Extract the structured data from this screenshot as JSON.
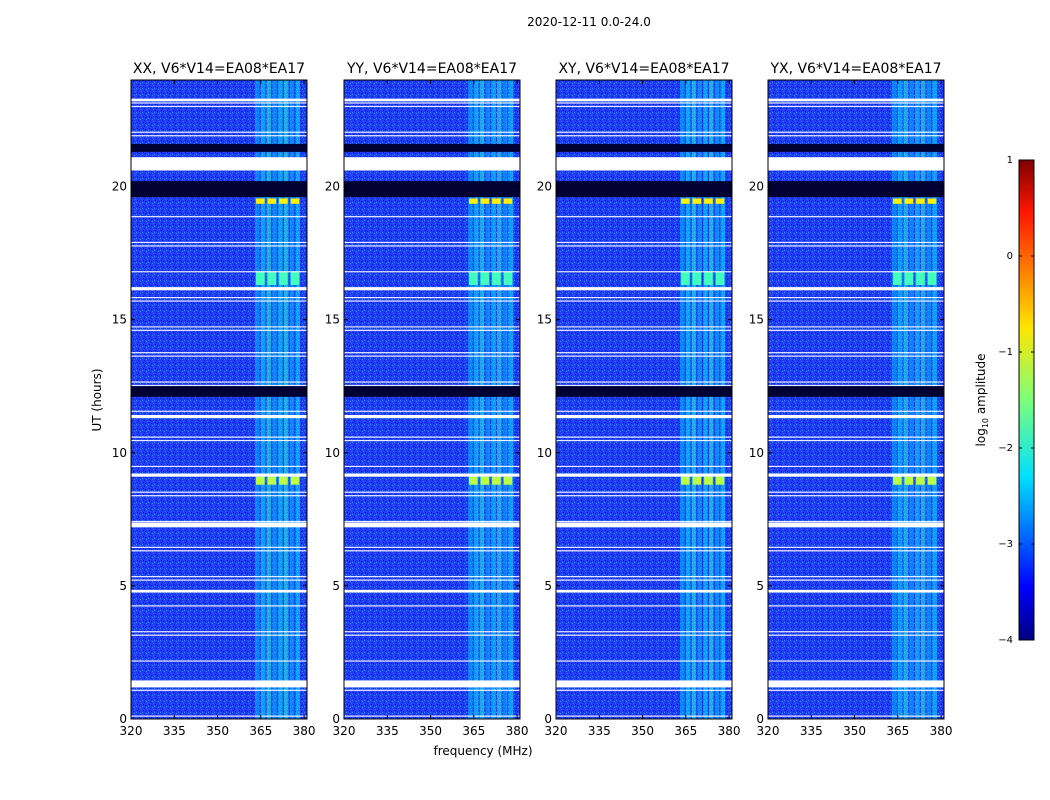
{
  "figure_title": "2020-12-11 0.0-24.0",
  "colors": {
    "background": "#ffffff",
    "base_noise": "#1f3df5",
    "flag_white": "#ffffff",
    "flag_black": "#000033"
  },
  "chart_data": {
    "type": "heatmap",
    "title": "2020-12-11 0.0-24.0",
    "xlabel": "frequency (MHz)",
    "ylabel": "UT (hours)",
    "xlim": [
      320,
      381
    ],
    "ylim": [
      0,
      24
    ],
    "xticks": [
      320,
      335,
      350,
      365,
      380
    ],
    "yticks": [
      0,
      5,
      10,
      15,
      20
    ],
    "panels": [
      {
        "title": "XX, V6*V14=EA08*EA17",
        "show_ylabel": true
      },
      {
        "title": "YY, V6*V14=EA08*EA17",
        "show_ylabel": false
      },
      {
        "title": "XY, V6*V14=EA08*EA17",
        "show_ylabel": false
      },
      {
        "title": "YX, V6*V14=EA08*EA17",
        "show_ylabel": false
      }
    ],
    "colorbar": {
      "label": "log10 amplitude",
      "label_main": "log",
      "label_sub": "10",
      "label_rest": " amplitude",
      "range": [
        -4,
        1
      ],
      "ticks": [
        {
          "value": 1,
          "label": "1"
        },
        {
          "value": 0,
          "label": "0"
        },
        {
          "value": -1,
          "label": "−1"
        },
        {
          "value": -2,
          "label": "−2"
        },
        {
          "value": -3,
          "label": "−3"
        },
        {
          "value": -4,
          "label": "−4"
        }
      ],
      "colormap": "jet"
    },
    "background_level": -3,
    "rfi_band_mhz": [
      363,
      379
    ],
    "rfi_level": -2.2,
    "flagged_black_ut": [
      [
        19.6,
        20.2
      ],
      [
        12.1,
        12.5
      ],
      [
        21.3,
        21.6
      ]
    ],
    "flagged_white_ut": [
      [
        20.6,
        21.1
      ],
      [
        1.2,
        1.45
      ],
      [
        7.2,
        7.38
      ],
      [
        16.1,
        16.22
      ],
      [
        11.3,
        11.42
      ],
      [
        9.1,
        9.22
      ],
      [
        23.2,
        23.3
      ],
      [
        4.75,
        4.85
      ]
    ],
    "bright_bursts": [
      {
        "ut": [
          19.35,
          19.55
        ],
        "level": -0.8
      },
      {
        "ut": [
          16.3,
          16.8
        ],
        "level": -1.8
      },
      {
        "ut": [
          8.8,
          9.1
        ],
        "level": -1.2
      }
    ]
  }
}
